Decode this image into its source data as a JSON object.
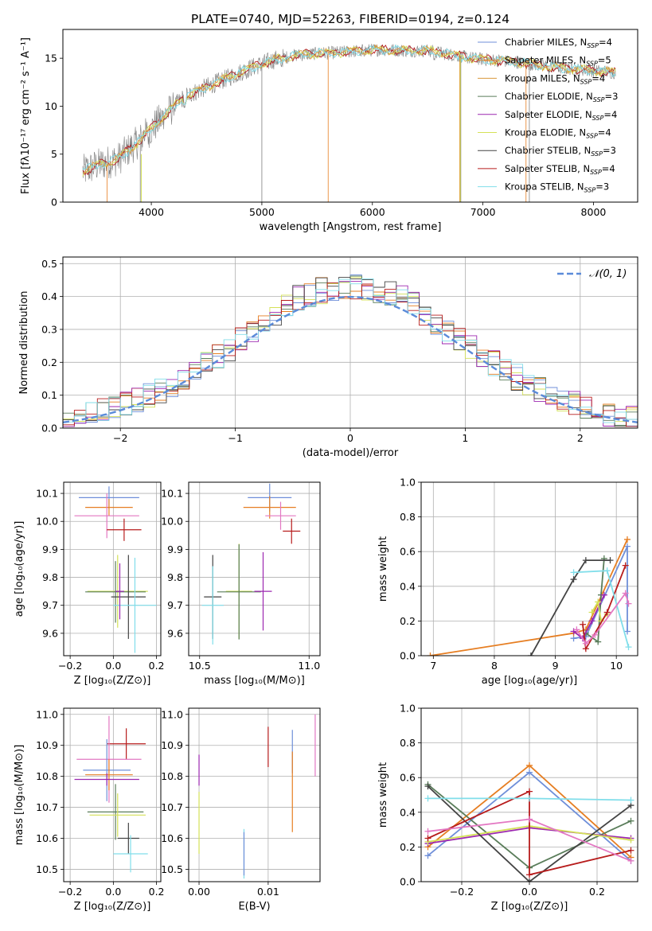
{
  "figure": {
    "title": "PLATE=0740, MJD=52263, FIBERID=0194, z=0.124"
  },
  "colors": {
    "chabrier_miles": "#6f8fd9",
    "salpeter_miles": "#e67e22",
    "kroupa_miles": "#d9983d",
    "chabrier_elodie": "#5a7d5a",
    "salpeter_elodie": "#9c27b0",
    "kroupa_elodie": "#d4e157",
    "chabrier_stelib": "#444444",
    "salpeter_stelib": "#b71c1c",
    "kroupa_stelib": "#80deea",
    "pink": "#e377c2",
    "gaussian": "#5b8bd9",
    "grid": "#b0b0b0",
    "data_spectrum": "#808080"
  },
  "chart_data": [
    {
      "id": "spectrum",
      "type": "line",
      "xlabel": "wavelength [Angstrom, rest frame]",
      "ylabel": "Flux [fλ10⁻¹⁷ erg cm⁻² s⁻¹ A⁻¹]",
      "xlim": [
        3200,
        8400
      ],
      "ylim": [
        0,
        18
      ],
      "xticks": [
        "4000",
        "5000",
        "6000",
        "7000",
        "8000"
      ],
      "xtick_values": [
        4000,
        5000,
        6000,
        7000,
        8000
      ],
      "yticks": [
        "0",
        "5",
        "10",
        "15"
      ],
      "ytick_values": [
        0,
        5,
        10,
        15
      ],
      "grid": false,
      "legend_position": "upper-right",
      "legend": [
        {
          "label": "Chabrier MILES, N",
          "sub": "SSP",
          "suffix": "=4",
          "color_key": "chabrier_miles"
        },
        {
          "label": "Salpeter MILES, N",
          "sub": "SSP",
          "suffix": "=5",
          "color_key": "salpeter_miles"
        },
        {
          "label": "Kroupa MILES, N",
          "sub": "SSP",
          "suffix": "=4",
          "color_key": "kroupa_miles"
        },
        {
          "label": "Chabrier ELODIE, N",
          "sub": "SSP",
          "suffix": "=3",
          "color_key": "chabrier_elodie"
        },
        {
          "label": "Salpeter ELODIE, N",
          "sub": "SSP",
          "suffix": "=4",
          "color_key": "salpeter_elodie"
        },
        {
          "label": "Kroupa ELODIE, N",
          "sub": "SSP",
          "suffix": "=4",
          "color_key": "kroupa_elodie"
        },
        {
          "label": "Chabrier STELIB, N",
          "sub": "SSP",
          "suffix": "=3",
          "color_key": "chabrier_stelib"
        },
        {
          "label": "Salpeter STELIB, N",
          "sub": "SSP",
          "suffix": "=4",
          "color_key": "salpeter_stelib"
        },
        {
          "label": "Kroupa STELIB, N",
          "sub": "SSP",
          "suffix": "=3",
          "color_key": "kroupa_stelib"
        }
      ],
      "continuum": [
        [
          3380,
          3.2
        ],
        [
          3500,
          3.8
        ],
        [
          3700,
          4.5
        ],
        [
          3900,
          6.5
        ],
        [
          4100,
          8.8
        ],
        [
          4300,
          11.0
        ],
        [
          4500,
          12.0
        ],
        [
          4700,
          13.0
        ],
        [
          4900,
          14.0
        ],
        [
          5100,
          14.8
        ],
        [
          5300,
          15.3
        ],
        [
          5500,
          15.5
        ],
        [
          5700,
          15.6
        ],
        [
          5900,
          15.8
        ],
        [
          6100,
          15.9
        ],
        [
          6300,
          15.8
        ],
        [
          6500,
          15.8
        ],
        [
          6700,
          15.4
        ],
        [
          6900,
          15.0
        ],
        [
          7100,
          14.8
        ],
        [
          7300,
          14.6
        ],
        [
          7500,
          14.3
        ],
        [
          7700,
          14.0
        ],
        [
          7900,
          13.8
        ],
        [
          8100,
          13.6
        ],
        [
          8200,
          13.5
        ]
      ],
      "absorption_lines": [
        [
          3933,
          7.5
        ],
        [
          3968,
          7.0
        ],
        [
          4102,
          9.5
        ],
        [
          4300,
          9.0
        ],
        [
          4340,
          10.2
        ],
        [
          4861,
          13.0
        ],
        [
          5175,
          14.0
        ],
        [
          5270,
          15.0
        ],
        [
          5890,
          15.0
        ],
        [
          6563,
          14.6
        ],
        [
          7600,
          13.0
        ]
      ],
      "spikes": [
        [
          5000,
          0
        ],
        [
          5600,
          0
        ],
        [
          5900,
          15.2
        ],
        [
          6790,
          0
        ],
        [
          6800,
          0
        ],
        [
          7390,
          0
        ],
        [
          7420,
          0
        ],
        [
          3600,
          0
        ],
        [
          3900,
          0
        ]
      ]
    },
    {
      "id": "residuals",
      "type": "step",
      "xlabel": "(data-model)/error",
      "ylabel": "Normed distribution",
      "xlim": [
        -2.5,
        2.5
      ],
      "ylim": [
        0,
        0.52
      ],
      "xticks": [
        "−2",
        "−1",
        "0",
        "1",
        "2"
      ],
      "xtick_values": [
        -2,
        -1,
        0,
        1,
        2
      ],
      "yticks": [
        "0.0",
        "0.1",
        "0.2",
        "0.3",
        "0.4",
        "0.5"
      ],
      "ytick_values": [
        0,
        0.1,
        0.2,
        0.3,
        0.4,
        0.5
      ],
      "grid": true,
      "legend_position": "upper-right",
      "gaussian_label": "𝒩(0, 1)",
      "bin_width": 0.1
    },
    {
      "id": "age-vs-Z",
      "type": "errorbar",
      "xlabel": "Z [log₁₀(Z/Z⊙)]",
      "ylabel": "age  [log₁₀(age/yr)]",
      "xlim": [
        -0.23,
        0.22
      ],
      "ylim": [
        9.52,
        10.14
      ],
      "xticks": [
        "−0.2",
        "0.0",
        "0.2"
      ],
      "xtick_values": [
        -0.2,
        0.0,
        0.2
      ],
      "yticks": [
        "9.6",
        "9.7",
        "9.8",
        "9.9",
        "10.0",
        "10.1"
      ],
      "ytick_values": [
        9.6,
        9.7,
        9.8,
        9.9,
        10.0,
        10.1
      ],
      "grid": true,
      "points": [
        {
          "x": -0.02,
          "xerr": 0.14,
          "y": 10.085,
          "yerr": 0.04,
          "c": "chabrier_miles"
        },
        {
          "x": -0.02,
          "xerr": 0.11,
          "y": 10.05,
          "yerr": 0.03,
          "c": "salpeter_miles"
        },
        {
          "x": -0.03,
          "xerr": 0.15,
          "y": 10.02,
          "yerr": 0.08,
          "c": "pink"
        },
        {
          "x": 0.05,
          "xerr": 0.08,
          "y": 9.97,
          "yerr": 0.04,
          "c": "salpeter_stelib"
        },
        {
          "x": 0.02,
          "xerr": 0.14,
          "y": 9.75,
          "yerr": 0.13,
          "c": "kroupa_elodie"
        },
        {
          "x": 0.01,
          "xerr": 0.14,
          "y": 9.748,
          "yerr": 0.11,
          "c": "chabrier_elodie"
        },
        {
          "x": 0.07,
          "xerr": 0.08,
          "y": 9.73,
          "yerr": 0.15,
          "c": "chabrier_stelib"
        },
        {
          "x": 0.1,
          "xerr": 0.1,
          "y": 9.7,
          "yerr": 0.17,
          "c": "kroupa_stelib"
        },
        {
          "x": 0.03,
          "xerr": 0.02,
          "y": 9.75,
          "yerr": 0.1,
          "c": "salpeter_elodie"
        }
      ]
    },
    {
      "id": "age-vs-mass",
      "type": "errorbar",
      "xlabel": "mass [log₁₀(M/M⊙)]",
      "ylabel": "",
      "xlim": [
        10.45,
        11.05
      ],
      "ylim": [
        9.52,
        10.14
      ],
      "xticks": [
        "10.5",
        "11.0"
      ],
      "xtick_values": [
        10.5,
        11.0
      ],
      "yticks": [
        "9.6",
        "9.7",
        "9.8",
        "9.9",
        "10.0",
        "10.1"
      ],
      "ytick_values": [
        9.6,
        9.7,
        9.8,
        9.9,
        10.0,
        10.1
      ],
      "grid": true,
      "points": [
        {
          "x": 10.82,
          "xerr": 0.1,
          "y": 10.085,
          "yerr": 0.05,
          "c": "chabrier_miles"
        },
        {
          "x": 10.82,
          "xerr": 0.12,
          "y": 10.05,
          "yerr": 0.04,
          "c": "salpeter_miles"
        },
        {
          "x": 10.87,
          "xerr": 0.07,
          "y": 10.02,
          "yerr": 0.05,
          "c": "pink"
        },
        {
          "x": 10.92,
          "xerr": 0.04,
          "y": 9.965,
          "yerr": 0.045,
          "c": "salpeter_stelib"
        },
        {
          "x": 10.68,
          "xerr": 0.06,
          "y": 9.75,
          "yerr": 0.17,
          "c": "kroupa_elodie"
        },
        {
          "x": 10.68,
          "xerr": 0.1,
          "y": 9.748,
          "yerr": 0.17,
          "c": "chabrier_elodie"
        },
        {
          "x": 10.56,
          "xerr": 0.04,
          "y": 9.73,
          "yerr": 0.15,
          "c": "chabrier_stelib"
        },
        {
          "x": 10.56,
          "xerr": 0.05,
          "y": 9.7,
          "yerr": 0.14,
          "c": "kroupa_stelib"
        },
        {
          "x": 10.79,
          "xerr": 0.04,
          "y": 9.75,
          "yerr": 0.14,
          "c": "salpeter_elodie"
        }
      ]
    },
    {
      "id": "weight-vs-age",
      "type": "line",
      "xlabel": "age  [log₁₀(age/yr)]",
      "ylabel": "mass weight",
      "xlim": [
        6.8,
        10.35
      ],
      "ylim": [
        0,
        1.0
      ],
      "xticks": [
        "7",
        "8",
        "9",
        "10"
      ],
      "xtick_values": [
        7,
        8,
        9,
        10
      ],
      "yticks": [
        "0.0",
        "0.2",
        "0.4",
        "0.6",
        "0.8",
        "1.0"
      ],
      "ytick_values": [
        0,
        0.2,
        0.4,
        0.6,
        0.8,
        1.0
      ],
      "grid": true,
      "series": [
        {
          "c": "chabrier_miles",
          "x": [
            9.3,
            9.5,
            10.18,
            10.18
          ],
          "y": [
            0.1,
            0.11,
            0.63,
            0.14
          ]
        },
        {
          "c": "salpeter_miles",
          "x": [
            6.95,
            9.3,
            9.5,
            10.18
          ],
          "y": [
            0.0,
            0.13,
            0.15,
            0.67
          ]
        },
        {
          "c": "chabrier_elodie",
          "x": [
            9.5,
            9.7,
            9.75,
            9.8
          ],
          "y": [
            0.13,
            0.08,
            0.35,
            0.56
          ]
        },
        {
          "c": "salpeter_elodie",
          "x": [
            9.3,
            9.45,
            9.6,
            9.8
          ],
          "y": [
            0.14,
            0.1,
            0.2,
            0.35
          ]
        },
        {
          "c": "kroupa_elodie",
          "x": [
            9.6,
            9.7,
            9.75,
            9.85
          ],
          "y": [
            0.25,
            0.31,
            0.2,
            0.24
          ]
        },
        {
          "c": "chabrier_stelib",
          "x": [
            8.6,
            9.3,
            9.5,
            9.9
          ],
          "y": [
            0.0,
            0.44,
            0.55,
            0.55
          ]
        },
        {
          "c": "salpeter_stelib",
          "x": [
            9.45,
            9.5,
            9.85,
            10.15
          ],
          "y": [
            0.18,
            0.04,
            0.25,
            0.52
          ]
        },
        {
          "c": "kroupa_stelib",
          "x": [
            9.3,
            9.85,
            10.2
          ],
          "y": [
            0.48,
            0.49,
            0.05
          ]
        },
        {
          "c": "pink",
          "x": [
            9.35,
            9.5,
            9.65,
            10.15,
            10.2
          ],
          "y": [
            0.15,
            0.07,
            0.12,
            0.36,
            0.3
          ]
        }
      ]
    },
    {
      "id": "mass-vs-Z",
      "type": "errorbar",
      "xlabel": "Z [log₁₀(Z/Z⊙)]",
      "ylabel": "mass [log₁₀(M/M⊙)]",
      "xlim": [
        -0.23,
        0.22
      ],
      "ylim": [
        10.46,
        11.02
      ],
      "xticks": [
        "−0.2",
        "0.0",
        "0.2"
      ],
      "xtick_values": [
        -0.2,
        0.0,
        0.2
      ],
      "yticks": [
        "10.5",
        "10.6",
        "10.7",
        "10.8",
        "10.9",
        "11.0"
      ],
      "ytick_values": [
        10.5,
        10.6,
        10.7,
        10.8,
        10.9,
        11.0
      ],
      "grid": true,
      "points": [
        {
          "x": 0.06,
          "xerr": 0.09,
          "y": 10.905,
          "yerr": 0.05,
          "c": "salpeter_stelib"
        },
        {
          "x": -0.02,
          "xerr": 0.15,
          "y": 10.855,
          "yerr": 0.14,
          "c": "pink"
        },
        {
          "x": -0.03,
          "xerr": 0.11,
          "y": 10.82,
          "yerr": 0.1,
          "c": "chabrier_miles"
        },
        {
          "x": -0.02,
          "xerr": 0.11,
          "y": 10.805,
          "yerr": 0.05,
          "c": "salpeter_miles"
        },
        {
          "x": -0.03,
          "xerr": 0.15,
          "y": 10.79,
          "yerr": 0.02,
          "c": "salpeter_elodie"
        },
        {
          "x": 0.01,
          "xerr": 0.13,
          "y": 10.685,
          "yerr": 0.09,
          "c": "chabrier_elodie"
        },
        {
          "x": 0.02,
          "xerr": 0.13,
          "y": 10.675,
          "yerr": 0.07,
          "c": "kroupa_elodie"
        },
        {
          "x": 0.07,
          "xerr": 0.05,
          "y": 10.6,
          "yerr": 0.05,
          "c": "chabrier_stelib"
        },
        {
          "x": 0.08,
          "xerr": 0.08,
          "y": 10.55,
          "yerr": 0.06,
          "c": "kroupa_stelib"
        }
      ]
    },
    {
      "id": "mass-vs-ebv",
      "type": "errorbar",
      "xlabel": "E(B-V)",
      "ylabel": "",
      "xlim": [
        -0.0015,
        0.0175
      ],
      "ylim": [
        10.46,
        11.02
      ],
      "xticks": [
        "0.00",
        "0.01"
      ],
      "xtick_values": [
        0.0,
        0.01
      ],
      "yticks": [
        "10.5",
        "10.6",
        "10.7",
        "10.8",
        "10.9",
        "11.0"
      ],
      "ytick_values": [
        10.5,
        10.6,
        10.7,
        10.8,
        10.9,
        11.0
      ],
      "grid": true,
      "points": [
        {
          "x": 0.0,
          "xerr": 0,
          "y": 10.82,
          "yerr": 0.05,
          "c": "salpeter_elodie"
        },
        {
          "x": 0.0,
          "xerr": 0,
          "y": 10.65,
          "yerr": 0.1,
          "c": "kroupa_elodie"
        },
        {
          "x": 0.0065,
          "xerr": 0,
          "y": 10.55,
          "yerr": 0.08,
          "c": "kroupa_stelib"
        },
        {
          "x": 0.0065,
          "xerr": 0,
          "y": 10.55,
          "yerr": 0.07,
          "c": "chabrier_miles"
        },
        {
          "x": 0.01,
          "xerr": 0,
          "y": 10.895,
          "yerr": 0.065,
          "c": "salpeter_stelib"
        },
        {
          "x": 0.0135,
          "xerr": 0,
          "y": 10.88,
          "yerr": 0.07,
          "c": "chabrier_miles"
        },
        {
          "x": 0.0135,
          "xerr": 0,
          "y": 10.75,
          "yerr": 0.13,
          "c": "salpeter_miles"
        },
        {
          "x": 0.0168,
          "xerr": 0,
          "y": 10.9,
          "yerr": 0.1,
          "c": "pink"
        }
      ]
    },
    {
      "id": "weight-vs-Z",
      "type": "line",
      "xlabel": "Z [log₁₀(Z/Z⊙)]",
      "ylabel": "mass weight",
      "xlim": [
        -0.32,
        0.32
      ],
      "ylim": [
        0,
        1.0
      ],
      "xticks": [
        "−0.2",
        "0.0",
        "0.2"
      ],
      "xtick_values": [
        -0.2,
        0.0,
        0.2
      ],
      "yticks": [
        "0.0",
        "0.2",
        "0.4",
        "0.6",
        "0.8",
        "1.0"
      ],
      "ytick_values": [
        0,
        0.2,
        0.4,
        0.6,
        0.8,
        1.0
      ],
      "grid": true,
      "series": [
        {
          "c": "chabrier_miles",
          "x": [
            -0.3,
            0.0,
            0.3
          ],
          "y": [
            0.15,
            0.63,
            0.12
          ]
        },
        {
          "c": "salpeter_miles",
          "x": [
            -0.3,
            0.0,
            0.3
          ],
          "y": [
            0.2,
            0.67,
            0.14
          ]
        },
        {
          "c": "chabrier_elodie",
          "x": [
            -0.3,
            0.0,
            0.3
          ],
          "y": [
            0.56,
            0.08,
            0.35
          ]
        },
        {
          "c": "salpeter_elodie",
          "x": [
            -0.3,
            0.0,
            0.3
          ],
          "y": [
            0.22,
            0.31,
            0.25
          ]
        },
        {
          "c": "kroupa_elodie",
          "x": [
            -0.3,
            0.0,
            0.3
          ],
          "y": [
            0.23,
            0.32,
            0.24
          ]
        },
        {
          "c": "chabrier_stelib",
          "x": [
            -0.3,
            0.0,
            0.3
          ],
          "y": [
            0.55,
            0.0,
            0.44
          ]
        },
        {
          "c": "salpeter_stelib",
          "x": [
            -0.3,
            0.0,
            0.0,
            0.3
          ],
          "y": [
            0.25,
            0.52,
            0.04,
            0.18
          ]
        },
        {
          "c": "kroupa_stelib",
          "x": [
            -0.3,
            0.0,
            0.3
          ],
          "y": [
            0.48,
            0.48,
            0.47
          ]
        },
        {
          "c": "pink",
          "x": [
            -0.3,
            0.0,
            0.3
          ],
          "y": [
            0.29,
            0.36,
            0.12
          ]
        }
      ]
    }
  ]
}
